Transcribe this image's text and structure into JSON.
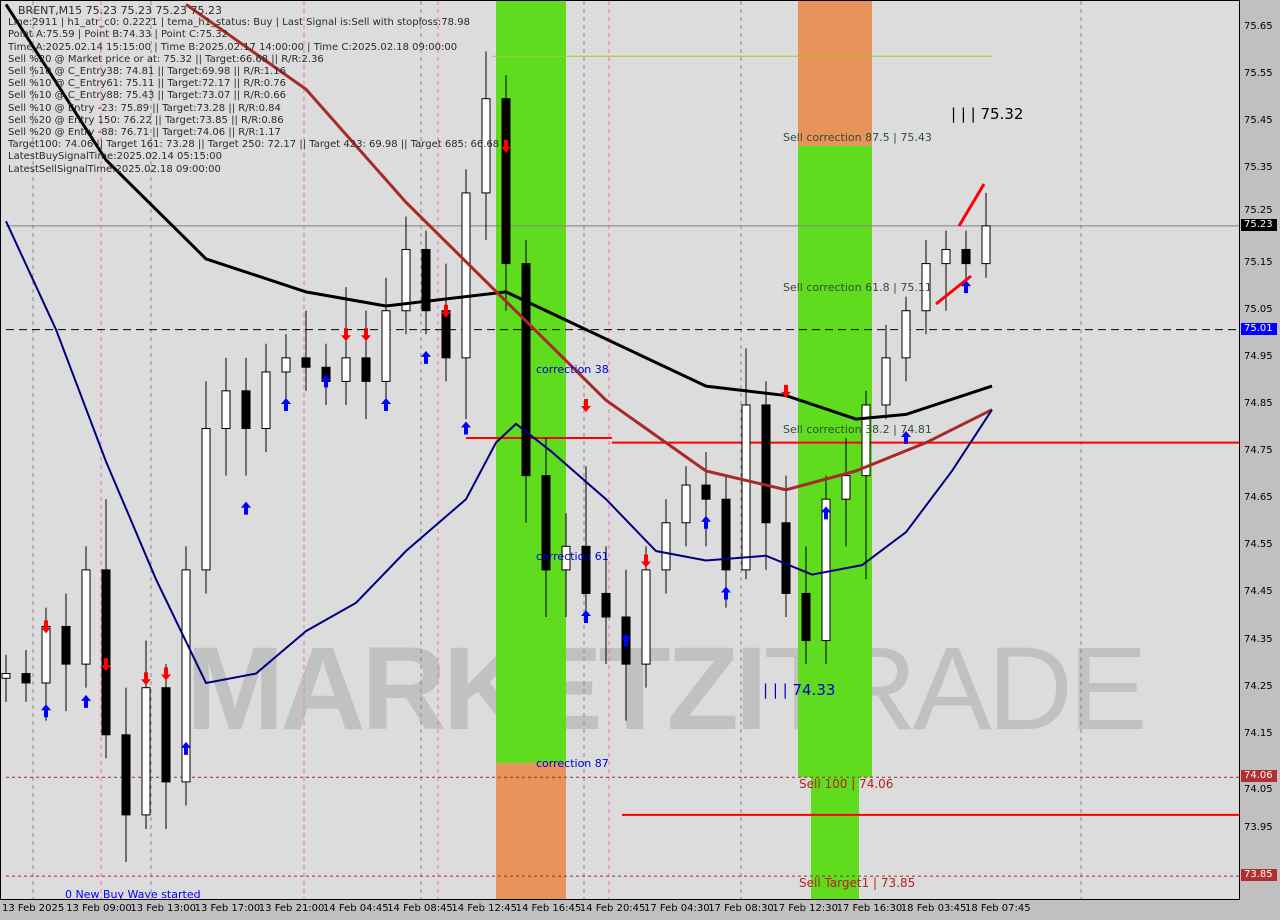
{
  "header": {
    "title": "BRENT,M15  75.23 75.23 75.23 75.23",
    "lines": [
      "Line:2911 | h1_atr_c0: 0.2221 | tema_h1_status: Buy | Last Signal is:Sell with stoploss:78.98",
      "Point A:75.59 | Point B:74.33 | Point C:75.32",
      "Time A:2025.02.14 15:15:00 | Time B:2025.02.17 14:00:00 | Time C:2025.02.18 09:00:00",
      "Sell %20 @ Market price or at: 75.32 || Target:66.68 || R/R:2.36",
      "Sell %10 @ C_Entry38: 74.81 || Target:69.98 || R/R:1.16",
      "Sell %10 @ C_Entry61: 75.11 || Target:72.17 || R/R:0.76",
      "Sell %10 @ C_Entry88: 75.43 || Target:73.07 || R/R:0.66",
      "Sell %10 @ Entry -23: 75.89 || Target:73.28 || R/R:0.84",
      "Sell %20 @ Entry 150: 76.22 || Target:73.85 || R/R:0.86",
      "Sell %20 @ Entry -88: 76.71 || Target:74.06 || R/R:1.17",
      "Target100: 74.06 || Target 161: 73.28 || Target 250: 72.17 || Target 423: 69.98 || Target 685: 66.68",
      "LatestBuySignalTime:2025.02.14 05:15:00",
      "LatestSellSignalTime:2025.02.18 09:00:00"
    ]
  },
  "watermark": {
    "bold": "MARKETZI",
    "light": "TRADE"
  },
  "chart_data": {
    "type": "candlestick",
    "symbol": "BRENT",
    "timeframe": "M15",
    "ylim": [
      73.82,
      75.7
    ],
    "yticks": [
      "75.65",
      "75.55",
      "75.45",
      "75.35",
      "75.25",
      "75.15",
      "75.05",
      "74.95",
      "74.85",
      "74.75",
      "74.65",
      "74.55",
      "74.45",
      "74.35",
      "74.25",
      "74.15",
      "74.05",
      "73.95"
    ],
    "xticks": [
      "13 Feb 2025",
      "13 Feb 09:00",
      "13 Feb 13:00",
      "13 Feb 17:00",
      "13 Feb 21:00",
      "14 Feb 04:45",
      "14 Feb 08:45",
      "14 Feb 12:45",
      "14 Feb 16:45",
      "14 Feb 20:45",
      "17 Feb 04:30",
      "17 Feb 08:30",
      "17 Feb 12:30",
      "17 Feb 16:30",
      "18 Feb 03:45",
      "18 Feb 07:45"
    ],
    "candles_ohlc": [
      [
        74.27,
        74.32,
        74.22,
        74.28
      ],
      [
        74.28,
        74.33,
        74.22,
        74.26
      ],
      [
        74.26,
        74.42,
        74.18,
        74.38
      ],
      [
        74.38,
        74.45,
        74.2,
        74.3
      ],
      [
        74.3,
        74.55,
        74.25,
        74.5
      ],
      [
        74.5,
        74.65,
        74.1,
        74.15
      ],
      [
        74.15,
        74.25,
        73.88,
        73.98
      ],
      [
        73.98,
        74.35,
        73.95,
        74.25
      ],
      [
        74.25,
        74.3,
        73.95,
        74.05
      ],
      [
        74.05,
        74.55,
        74.0,
        74.5
      ],
      [
        74.5,
        74.9,
        74.45,
        74.8
      ],
      [
        74.8,
        74.95,
        74.7,
        74.88
      ],
      [
        74.88,
        74.95,
        74.7,
        74.8
      ],
      [
        74.8,
        74.98,
        74.75,
        74.92
      ],
      [
        74.92,
        75.0,
        74.85,
        74.95
      ],
      [
        74.95,
        75.05,
        74.88,
        74.93
      ],
      [
        74.93,
        74.98,
        74.85,
        74.9
      ],
      [
        74.9,
        75.1,
        74.85,
        74.95
      ],
      [
        74.95,
        75.05,
        74.82,
        74.9
      ],
      [
        74.9,
        75.12,
        74.85,
        75.05
      ],
      [
        75.05,
        75.25,
        75.0,
        75.18
      ],
      [
        75.18,
        75.22,
        75.0,
        75.05
      ],
      [
        75.05,
        75.15,
        74.9,
        74.95
      ],
      [
        74.95,
        75.35,
        74.82,
        75.3
      ],
      [
        75.3,
        75.6,
        75.2,
        75.5
      ],
      [
        75.5,
        75.55,
        75.05,
        75.15
      ],
      [
        75.15,
        75.2,
        74.6,
        74.7
      ],
      [
        74.7,
        74.78,
        74.4,
        74.5
      ],
      [
        74.5,
        74.62,
        74.4,
        74.55
      ],
      [
        74.55,
        74.72,
        74.4,
        74.45
      ],
      [
        74.45,
        74.55,
        74.3,
        74.4
      ],
      [
        74.4,
        74.5,
        74.18,
        74.3
      ],
      [
        74.3,
        74.55,
        74.25,
        74.5
      ],
      [
        74.5,
        74.65,
        74.45,
        74.6
      ],
      [
        74.6,
        74.72,
        74.55,
        74.68
      ],
      [
        74.68,
        74.75,
        74.55,
        74.65
      ],
      [
        74.65,
        74.7,
        74.42,
        74.5
      ],
      [
        74.5,
        74.97,
        74.48,
        74.85
      ],
      [
        74.85,
        74.9,
        74.5,
        74.6
      ],
      [
        74.6,
        74.7,
        74.4,
        74.45
      ],
      [
        74.45,
        74.55,
        74.3,
        74.35
      ],
      [
        74.35,
        74.7,
        74.3,
        74.65
      ],
      [
        74.65,
        74.78,
        74.55,
        74.7
      ],
      [
        74.7,
        74.88,
        74.48,
        74.85
      ],
      [
        74.85,
        75.02,
        74.82,
        74.95
      ],
      [
        74.95,
        75.08,
        74.9,
        75.05
      ],
      [
        75.05,
        75.2,
        75.0,
        75.15
      ],
      [
        75.15,
        75.22,
        75.05,
        75.18
      ],
      [
        75.18,
        75.22,
        75.1,
        75.15
      ],
      [
        75.15,
        75.3,
        75.12,
        75.23
      ]
    ],
    "moving_averages": [
      {
        "color": "#000000",
        "points": [
          [
            0,
            75.7
          ],
          [
            5,
            75.37
          ],
          [
            10,
            75.16
          ],
          [
            15,
            75.09
          ],
          [
            19,
            75.06
          ],
          [
            25,
            75.09
          ],
          [
            30,
            74.99
          ],
          [
            35,
            74.89
          ],
          [
            39,
            74.87
          ],
          [
            42.5,
            74.82
          ],
          [
            45,
            74.83
          ],
          [
            49.3,
            74.89
          ]
        ]
      },
      {
        "color": "#a52a2a",
        "points": [
          [
            9,
            75.7
          ],
          [
            15,
            75.52
          ],
          [
            20,
            75.28
          ],
          [
            25,
            75.07
          ],
          [
            30,
            74.86
          ],
          [
            35,
            74.71
          ],
          [
            39,
            74.67
          ],
          [
            42.5,
            74.71
          ],
          [
            46,
            74.77
          ],
          [
            49.3,
            74.84
          ]
        ]
      },
      {
        "color": "#000080",
        "points": [
          [
            0,
            75.24
          ],
          [
            2.5,
            75.01
          ],
          [
            5,
            74.73
          ],
          [
            7.5,
            74.48
          ],
          [
            10,
            74.26
          ],
          [
            12.5,
            74.28
          ],
          [
            15,
            74.37
          ],
          [
            17.5,
            74.43
          ],
          [
            20,
            74.54
          ],
          [
            23,
            74.65
          ],
          [
            24.5,
            74.77
          ],
          [
            25.5,
            74.81
          ],
          [
            27.3,
            74.75
          ],
          [
            30,
            74.65
          ],
          [
            32.5,
            74.54
          ],
          [
            35,
            74.52
          ],
          [
            38,
            74.53
          ],
          [
            40.3,
            74.49
          ],
          [
            42.8,
            74.51
          ],
          [
            45,
            74.58
          ],
          [
            47.3,
            74.71
          ],
          [
            49.3,
            74.84
          ]
        ]
      }
    ],
    "zones": [
      {
        "from": 24.5,
        "to": 28,
        "green_from": 75.7,
        "green_to": 74.09,
        "orange_to": 73.82
      },
      {
        "from": 39.6,
        "to": 43.3,
        "orange_from": 75.7,
        "orange_to": 75.4,
        "green_to": 74.06,
        "narrow_green_to": 73.82
      }
    ],
    "levels": [
      {
        "price": 75.59,
        "color": "#9acd32",
        "from": 24.3,
        "to": 49.3,
        "style": "solid"
      },
      {
        "price": 74.78,
        "color": "#ff0000",
        "from": 23,
        "to": 30.3,
        "style": "solid"
      },
      {
        "price": 74.77,
        "color": "#ff0000",
        "from": 30.3,
        "to": 62,
        "style": "solid"
      },
      {
        "price": 73.98,
        "color": "#ff0000",
        "from": 30.8,
        "to": 62,
        "style": "solid"
      },
      {
        "price": 75.01,
        "color": "#000000",
        "from": 0,
        "to": 62,
        "style": "dashed"
      },
      {
        "price": 74.06,
        "color": "#a52a2a",
        "from": 0,
        "to": 62,
        "style": "dashed"
      },
      {
        "price": 73.85,
        "color": "#a52a2a",
        "from": 0,
        "to": 62,
        "style": "dashed"
      },
      {
        "price": 75.23,
        "color": "#808080",
        "from": 0,
        "to": 62,
        "style": "solid"
      }
    ],
    "buy_arrows": [
      [
        2,
        74.2
      ],
      [
        4,
        74.22
      ],
      [
        9,
        74.12
      ],
      [
        12,
        74.63
      ],
      [
        14,
        74.85
      ],
      [
        16,
        74.9
      ],
      [
        19,
        74.85
      ],
      [
        21,
        74.95
      ],
      [
        23,
        74.8
      ],
      [
        29,
        74.4
      ],
      [
        31,
        74.35
      ],
      [
        35,
        74.6
      ],
      [
        36,
        74.45
      ],
      [
        41,
        74.62
      ],
      [
        45,
        74.78
      ],
      [
        48,
        75.1
      ]
    ],
    "sell_arrows": [
      [
        2,
        74.38
      ],
      [
        5,
        74.3
      ],
      [
        7,
        74.27
      ],
      [
        8,
        74.28
      ],
      [
        17,
        75.0
      ],
      [
        18,
        75.0
      ],
      [
        22,
        75.05
      ],
      [
        25,
        75.4
      ],
      [
        29,
        74.85
      ],
      [
        32,
        74.52
      ],
      [
        39,
        74.88
      ]
    ],
    "price_tags": [
      {
        "value": "75.23",
        "color": "#000000"
      },
      {
        "value": "75.01",
        "color": "#0000ff"
      },
      {
        "value": "74.06",
        "color": "#b03030"
      },
      {
        "value": "73.85",
        "color": "#b03030"
      }
    ],
    "annotations": [
      {
        "text": "Sell correction 87.5 | 75.43",
        "color": "#2f4f2f"
      },
      {
        "text": "Sell correction 61.8 | 75.11",
        "color": "#2f4f2f"
      },
      {
        "text": "Sell correction 38.2 | 74.81",
        "color": "#2f4f2f"
      },
      {
        "text": "correction 38",
        "color": "#0000cd"
      },
      {
        "text": "correction 61",
        "color": "#0000cd"
      },
      {
        "text": "correction 87",
        "color": "#0000cd"
      },
      {
        "text": "Sell 100 | 74.06",
        "color": "#b22222"
      },
      {
        "text": "Sell Target1 | 73.85",
        "color": "#b22222"
      },
      {
        "text": "| | | 75.32",
        "color": "#000000"
      },
      {
        "text": "| | | 74.33",
        "color": "#0000cd"
      },
      {
        "text": "0 New Buy Wave started",
        "color": "#0000ff"
      }
    ]
  }
}
